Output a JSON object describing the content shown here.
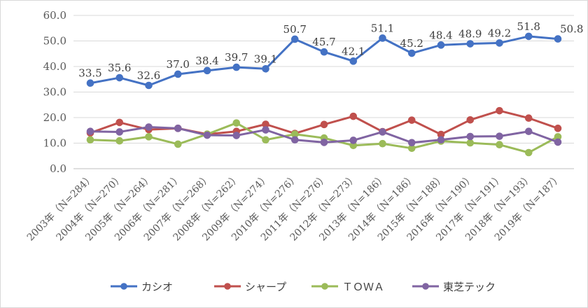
{
  "chart_data": {
    "type": "line",
    "categories": [
      "2003年（N=284）",
      "2004年（N=270）",
      "2005年（N=264）",
      "2006年（N=281）",
      "2007年（N=268）",
      "2008年（N=262）",
      "2009年（N=274）",
      "2010年（N=276）",
      "2011年（N=276）",
      "2012年（N=273）",
      "2013年（N=186）",
      "2014年（N=186）",
      "2015年（N=188）",
      "2016年（N=190）",
      "2017年（N=191）",
      "2018年（N=193）",
      "2019年（N=187）"
    ],
    "ylim": [
      0,
      60
    ],
    "yticks": [
      "0.0",
      "10.0",
      "20.0",
      "30.0",
      "40.0",
      "50.0",
      "60.0"
    ],
    "legend_position": "bottom",
    "grid": true,
    "series": [
      {
        "name": "カシオ",
        "color": "#4472c4",
        "values": [
          33.5,
          35.6,
          32.6,
          37.0,
          38.4,
          39.7,
          39.1,
          50.7,
          45.7,
          42.1,
          51.1,
          45.2,
          48.4,
          48.9,
          49.2,
          51.8,
          50.8
        ],
        "labels": [
          "33.5",
          "35.6",
          "32.6",
          "37.0",
          "38.4",
          "39.7",
          "39.1",
          "50.7",
          "45.7",
          "42.1",
          "51.1",
          "45.2",
          "48.4",
          "48.9",
          "49.2",
          "51.8",
          "50.8"
        ]
      },
      {
        "name": "シャープ",
        "color": "#c0504d",
        "values": [
          14.0,
          18.1,
          15.3,
          15.8,
          13.5,
          14.6,
          17.4,
          13.8,
          17.3,
          20.5,
          14.5,
          19.0,
          13.4,
          19.1,
          22.7,
          19.8,
          15.8
        ]
      },
      {
        "name": "ＴＯＷＡ",
        "color": "#9bbb59",
        "values": [
          11.3,
          10.9,
          12.5,
          9.6,
          13.5,
          17.9,
          11.3,
          13.5,
          12.0,
          9.1,
          9.8,
          8.0,
          10.8,
          10.1,
          9.4,
          6.3,
          12.5
        ]
      },
      {
        "name": "東芝テック",
        "color": "#8064a2",
        "values": [
          14.6,
          14.4,
          16.3,
          15.8,
          13.1,
          13.0,
          15.2,
          11.3,
          10.3,
          11.1,
          14.4,
          10.2,
          11.3,
          12.6,
          12.7,
          14.6,
          10.4
        ]
      }
    ]
  }
}
